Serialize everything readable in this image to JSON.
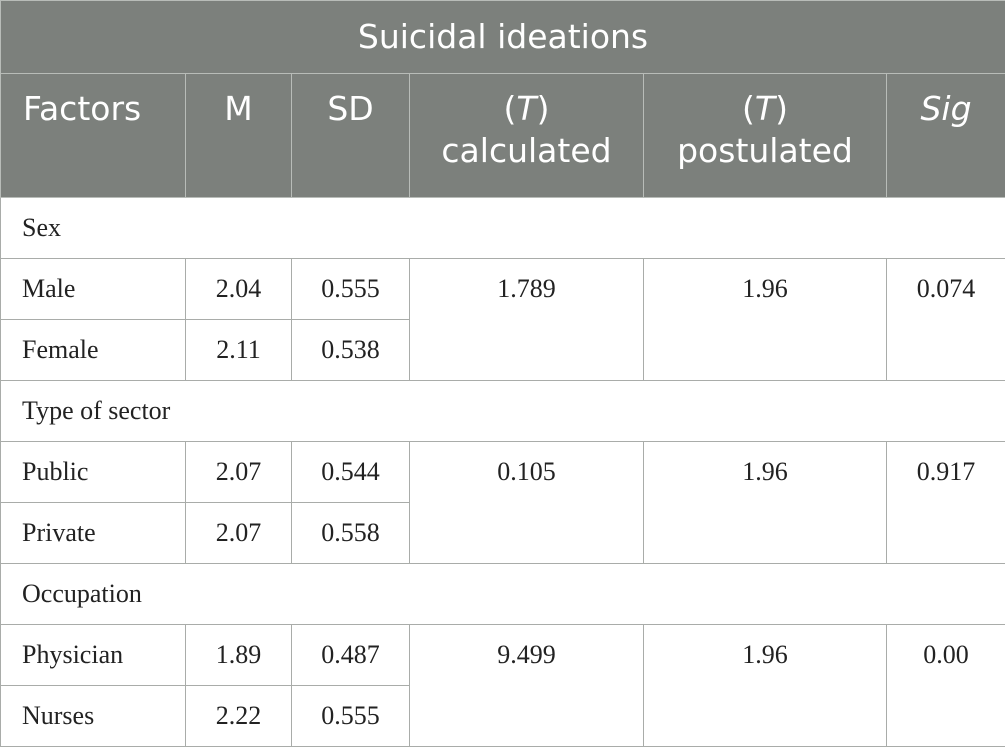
{
  "table": {
    "title": "Suicidal ideations",
    "headers": {
      "factors": "Factors",
      "m": "M",
      "sd": "SD",
      "t_calc_prefix": "(T)",
      "t_calc_word": "calculated",
      "t_post_prefix": "(T)",
      "t_post_word": "postulated",
      "sig": "Sig"
    },
    "groups": [
      {
        "name": "Sex",
        "t_calculated": "1.789",
        "t_postulated": "1.96",
        "sig": "0.074",
        "rows": [
          {
            "label": "Male",
            "m": "2.04",
            "sd": "0.555"
          },
          {
            "label": "Female",
            "m": "2.11",
            "sd": "0.538"
          }
        ]
      },
      {
        "name": "Type of sector",
        "t_calculated": "0.105",
        "t_postulated": "1.96",
        "sig": "0.917",
        "rows": [
          {
            "label": "Public",
            "m": "2.07",
            "sd": "0.544"
          },
          {
            "label": "Private",
            "m": "2.07",
            "sd": "0.558"
          }
        ]
      },
      {
        "name": "Occupation",
        "t_calculated": "9.499",
        "t_postulated": "1.96",
        "sig": "0.00",
        "rows": [
          {
            "label": "Physician",
            "m": "1.89",
            "sd": "0.487"
          },
          {
            "label": "Nurses",
            "m": "2.22",
            "sd": "0.555"
          }
        ]
      }
    ]
  }
}
